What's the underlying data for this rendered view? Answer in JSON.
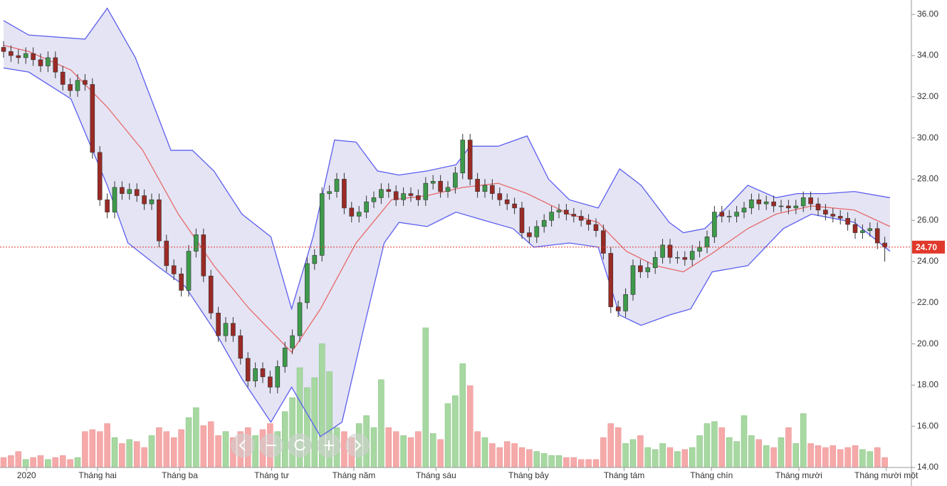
{
  "chart_data": {
    "type": "candlestick",
    "open": [
      34.4,
      34.2,
      34.0,
      33.9,
      34.1,
      33.8,
      33.5,
      33.9,
      33.2,
      32.6,
      32.3,
      32.8,
      32.6,
      29.3,
      27.0,
      26.4,
      27.6,
      27.3,
      27.5,
      27.2,
      26.8,
      27.0,
      25.0,
      23.8,
      23.4,
      22.6,
      24.5,
      25.3,
      23.3,
      21.5,
      20.4,
      21.0,
      20.4,
      19.3,
      18.2,
      18.8,
      18.4,
      17.9,
      18.9,
      19.8,
      20.4,
      22.0,
      23.9,
      24.3,
      27.3,
      27.4,
      28.0,
      26.6,
      26.2,
      26.4,
      26.9,
      27.1,
      27.5,
      27.4,
      27.0,
      27.3,
      27.2,
      27.0,
      27.8,
      27.9,
      27.4,
      27.6,
      28.3,
      29.9,
      28.0,
      27.4,
      27.7,
      27.3,
      27.0,
      26.8,
      26.6,
      25.4,
      25.2,
      25.7,
      26.0,
      26.4,
      26.5,
      26.3,
      26.2,
      26.0,
      25.8,
      25.5,
      24.4,
      21.8,
      21.6,
      22.4,
      23.8,
      23.5,
      23.7,
      24.2,
      24.8,
      24.2,
      24.2,
      24.1,
      24.5,
      24.7,
      25.2,
      26.4,
      26.2,
      26.2,
      26.4,
      26.6,
      27.0,
      26.8,
      26.9,
      26.7,
      26.7,
      26.6,
      26.7,
      27.1,
      26.8,
      26.5,
      26.3,
      26.2,
      26.1,
      25.8,
      25.4,
      25.5,
      25.6,
      24.9
    ],
    "high": [
      34.7,
      34.5,
      34.3,
      34.4,
      34.4,
      34.1,
      34.2,
      34.2,
      33.5,
      32.9,
      33.1,
      33.1,
      32.9,
      29.6,
      27.3,
      27.9,
      27.9,
      27.8,
      27.8,
      27.5,
      27.3,
      27.3,
      25.3,
      24.1,
      23.7,
      24.8,
      25.6,
      25.6,
      23.6,
      21.8,
      21.3,
      21.3,
      20.7,
      19.6,
      19.1,
      19.1,
      18.7,
      19.2,
      20.1,
      20.7,
      22.3,
      24.2,
      24.6,
      27.6,
      27.7,
      28.3,
      28.3,
      26.9,
      26.7,
      27.2,
      27.4,
      27.8,
      27.8,
      27.7,
      27.6,
      27.6,
      27.5,
      28.1,
      28.2,
      28.2,
      27.9,
      28.6,
      30.2,
      30.2,
      28.3,
      28.0,
      28.0,
      27.6,
      27.3,
      27.1,
      26.9,
      25.7,
      26.0,
      26.3,
      26.7,
      26.8,
      26.8,
      26.6,
      26.5,
      26.3,
      26.1,
      25.8,
      24.7,
      22.1,
      22.7,
      24.1,
      24.1,
      24.0,
      24.5,
      25.1,
      25.1,
      24.5,
      24.5,
      24.8,
      25.0,
      25.5,
      26.7,
      26.7,
      26.5,
      26.7,
      26.9,
      27.3,
      27.3,
      27.2,
      27.2,
      27.0,
      27.0,
      27.0,
      27.4,
      27.4,
      27.1,
      26.8,
      26.6,
      26.5,
      26.4,
      26.1,
      25.8,
      25.9,
      25.9,
      25.2
    ],
    "low": [
      33.9,
      33.7,
      33.6,
      33.6,
      33.5,
      33.2,
      33.2,
      32.9,
      32.3,
      32.0,
      32.0,
      32.3,
      29.0,
      26.7,
      26.1,
      26.1,
      27.0,
      27.0,
      26.9,
      26.5,
      26.5,
      24.7,
      23.5,
      23.1,
      22.3,
      22.3,
      24.2,
      23.0,
      21.2,
      20.1,
      20.1,
      20.1,
      19.0,
      17.9,
      17.9,
      18.1,
      17.6,
      17.6,
      18.6,
      19.5,
      20.1,
      21.7,
      23.6,
      24.0,
      27.0,
      27.1,
      26.3,
      25.9,
      25.9,
      26.1,
      26.6,
      26.8,
      27.1,
      26.7,
      26.7,
      26.9,
      26.7,
      26.7,
      27.5,
      27.1,
      27.1,
      27.3,
      28.0,
      27.7,
      27.1,
      27.1,
      27.0,
      26.7,
      26.5,
      26.3,
      25.1,
      24.9,
      24.9,
      25.4,
      25.7,
      26.1,
      26.0,
      25.9,
      25.7,
      25.5,
      25.2,
      24.1,
      21.5,
      21.3,
      21.3,
      22.1,
      23.2,
      23.2,
      23.4,
      23.9,
      23.9,
      23.9,
      23.8,
      23.8,
      24.2,
      24.4,
      24.9,
      25.9,
      25.9,
      25.9,
      26.1,
      26.3,
      26.5,
      26.5,
      26.4,
      26.4,
      26.3,
      26.3,
      26.4,
      26.5,
      26.2,
      26.0,
      25.9,
      25.8,
      25.5,
      25.1,
      25.1,
      25.2,
      24.6,
      24.0
    ],
    "close": [
      34.2,
      34.0,
      33.9,
      34.1,
      33.8,
      33.5,
      33.9,
      33.2,
      32.6,
      32.3,
      32.8,
      32.6,
      29.3,
      27.0,
      26.4,
      27.6,
      27.3,
      27.5,
      27.2,
      26.8,
      27.0,
      25.0,
      23.8,
      23.4,
      22.6,
      24.5,
      25.3,
      23.3,
      21.5,
      20.4,
      21.0,
      20.4,
      19.3,
      18.2,
      18.8,
      18.4,
      17.9,
      18.9,
      19.8,
      20.4,
      22.0,
      23.9,
      24.3,
      27.3,
      27.4,
      28.0,
      26.6,
      26.2,
      26.4,
      26.9,
      27.1,
      27.5,
      27.4,
      27.0,
      27.3,
      27.2,
      27.0,
      27.8,
      27.9,
      27.4,
      27.6,
      28.3,
      29.9,
      28.0,
      27.4,
      27.7,
      27.3,
      27.0,
      26.8,
      26.6,
      25.4,
      25.2,
      25.7,
      26.0,
      26.4,
      26.5,
      26.3,
      26.2,
      26.0,
      25.8,
      25.5,
      24.4,
      21.8,
      21.6,
      22.4,
      23.8,
      23.5,
      23.7,
      24.2,
      24.8,
      24.2,
      24.2,
      24.1,
      24.5,
      24.7,
      25.2,
      26.4,
      26.2,
      26.2,
      26.4,
      26.6,
      27.0,
      26.8,
      26.9,
      26.7,
      26.7,
      26.6,
      26.7,
      27.1,
      26.8,
      26.5,
      26.3,
      26.2,
      26.1,
      25.8,
      25.4,
      25.5,
      25.6,
      24.9,
      24.7
    ],
    "volume": [
      0.5,
      0.6,
      0.8,
      0.4,
      0.5,
      0.6,
      0.4,
      0.5,
      0.6,
      0.4,
      0.5,
      1.8,
      1.9,
      1.8,
      2.2,
      1.5,
      1.2,
      1.4,
      1.3,
      1.0,
      1.6,
      2.0,
      1.8,
      1.5,
      1.9,
      2.5,
      3.0,
      2.1,
      2.3,
      1.6,
      1.8,
      1.5,
      1.8,
      2.0,
      1.6,
      1.9,
      2.2,
      1.8,
      2.8,
      3.5,
      5.0,
      4.0,
      4.5,
      6.2,
      4.8,
      2.0,
      1.8,
      1.5,
      2.2,
      2.6,
      2.0,
      4.4,
      2.0,
      1.8,
      1.6,
      1.5,
      1.8,
      7.0,
      1.7,
      1.4,
      3.2,
      3.6,
      5.2,
      4.1,
      1.8,
      1.5,
      1.2,
      1.0,
      1.3,
      1.2,
      1.0,
      0.9,
      0.8,
      0.7,
      0.6,
      0.6,
      0.5,
      0.5,
      0.4,
      0.4,
      0.4,
      1.5,
      2.2,
      2.0,
      1.2,
      1.4,
      1.6,
      1.0,
      0.9,
      1.2,
      1.0,
      0.8,
      0.9,
      1.0,
      1.6,
      2.2,
      2.3,
      2.0,
      1.5,
      1.3,
      2.6,
      1.6,
      1.4,
      1.1,
      1.0,
      1.5,
      2.0,
      1.2,
      2.7,
      1.2,
      1.1,
      1.0,
      1.1,
      0.9,
      1.0,
      1.1,
      0.9,
      0.8,
      1.0,
      0.5
    ],
    "upper_band": {
      "x": [
        0,
        3.4,
        11,
        14,
        17.8,
        22.6,
        25.5,
        28.4,
        32.2,
        36.1,
        38.9,
        41.8,
        44.7,
        47.6,
        50.5,
        53.4,
        57.2,
        61.1,
        63,
        66.8,
        70.7,
        73.6,
        76.4,
        80.3,
        83.2,
        86.1,
        89.9,
        91.8,
        94.7,
        97.6,
        100.5,
        104.3,
        107.2,
        111.1,
        114.9,
        119.7
      ],
      "values": [
        35.7,
        35.0,
        34.8,
        36.3,
        33.9,
        29.4,
        29.4,
        28.4,
        26.3,
        25.2,
        21.7,
        25.2,
        29.9,
        29.8,
        28.4,
        28.2,
        28.4,
        28.7,
        29.6,
        29.6,
        30.1,
        28.0,
        27.0,
        26.6,
        28.5,
        27.7,
        25.9,
        25.4,
        25.6,
        26.6,
        27.7,
        27.1,
        27.3,
        27.3,
        27.4,
        27.1
      ]
    },
    "middle_band": {
      "x": [
        0,
        3.4,
        9.1,
        14,
        18.8,
        23.6,
        28.4,
        33.2,
        38.9,
        42.8,
        47.6,
        52.4,
        57.2,
        62,
        66.8,
        70.7,
        76.4,
        80.3,
        84.1,
        88,
        91.8,
        95.7,
        100.5,
        104.3,
        109.1,
        114.9,
        119.7
      ],
      "values": [
        34.5,
        34.2,
        33.3,
        31.5,
        29.4,
        26.3,
        23.8,
        21.7,
        19.6,
        21.7,
        24.9,
        27.0,
        27.2,
        27.6,
        27.8,
        27.3,
        26.3,
        25.9,
        24.5,
        23.8,
        23.5,
        24.4,
        25.6,
        26.3,
        26.7,
        26.5,
        25.7
      ]
    },
    "lower_band": {
      "x": [
        0,
        3.4,
        9.1,
        14,
        16.8,
        20.7,
        24.5,
        28.4,
        32.2,
        36.1,
        38.9,
        42.8,
        45.7,
        48.6,
        51.4,
        53.4,
        57.2,
        61.1,
        64.9,
        68.8,
        71.6,
        76.4,
        80.3,
        83.2,
        86.1,
        89.9,
        92.8,
        95.7,
        100.5,
        105.3,
        109.1,
        114.9,
        119.7
      ],
      "values": [
        33.4,
        33.2,
        31.9,
        27.7,
        24.9,
        23.8,
        22.8,
        20.7,
        18.3,
        16.2,
        17.9,
        15.5,
        16.2,
        20.7,
        24.9,
        25.9,
        25.7,
        26.4,
        26.0,
        25.6,
        24.7,
        24.9,
        24.7,
        21.4,
        20.9,
        21.4,
        21.7,
        23.5,
        23.8,
        25.6,
        26.3,
        25.9,
        24.5
      ]
    },
    "xticks": [
      {
        "value": 3.1,
        "label": "2020"
      },
      {
        "value": 12.7,
        "label": "Tháng hai"
      },
      {
        "value": 23.8,
        "label": "Tháng ba"
      },
      {
        "value": 36.2,
        "label": "Tháng tư"
      },
      {
        "value": 47.3,
        "label": "Tháng năm"
      },
      {
        "value": 58.4,
        "label": "Tháng sáu"
      },
      {
        "value": 70.9,
        "label": "Tháng bảy"
      },
      {
        "value": 83.8,
        "label": "Tháng tám"
      },
      {
        "value": 95.6,
        "label": "Tháng chín"
      },
      {
        "value": 107.4,
        "label": "Tháng mười"
      },
      {
        "value": 119.2,
        "label": "Tháng mười một"
      }
    ],
    "ylim": [
      14,
      36.7
    ],
    "yticks": [
      {
        "value": 14,
        "label": "14.00"
      },
      {
        "value": 16,
        "label": "16.00"
      },
      {
        "value": 18,
        "label": "18.00"
      },
      {
        "value": 20,
        "label": "20.00"
      },
      {
        "value": 22,
        "label": "22.00"
      },
      {
        "value": 24,
        "label": "24.00"
      },
      {
        "value": 26,
        "label": "26.00"
      },
      {
        "value": 28,
        "label": "28.00"
      },
      {
        "value": 30,
        "label": "30.00"
      },
      {
        "value": 32,
        "label": "32.00"
      },
      {
        "value": 34,
        "label": "34.00"
      },
      {
        "value": 36,
        "label": "36.00"
      }
    ],
    "last_price": {
      "value": 24.7,
      "label": "24.70"
    },
    "grid": false,
    "up_color": "#3d9a4a",
    "down_color": "#9b2a25",
    "volume_up_color": "#a8d8a2",
    "volume_down_color": "#f5a9a9",
    "band_color": "#5c5ef0",
    "band_fill": "#e4e4f4",
    "middle_color": "#e86a6a",
    "last_price_color": "#e0382a"
  }
}
